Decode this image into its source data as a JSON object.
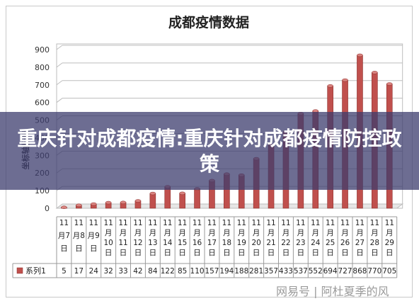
{
  "headline": "重庆针对成都疫情:重庆针对成都疫情防控政策",
  "watermark": "网易号 | 阿杜夏季的风",
  "chart_data": {
    "type": "bar",
    "title": "成都疫情数据",
    "ylabel": "坐标轴标题",
    "xlabel": "",
    "ylim": [
      0,
      900
    ],
    "yticks": [
      0,
      100,
      200,
      300,
      400,
      500,
      600,
      700,
      800,
      900
    ],
    "grid": true,
    "legend_position": "table-left",
    "categories": [
      "11月7日",
      "11月8日",
      "11月9日",
      "11月10日",
      "11月11日",
      "11月12日",
      "11月13日",
      "11月14日",
      "11月15日",
      "11月16日",
      "11月17日",
      "11月18日",
      "11月19日",
      "11月20日",
      "11月21日",
      "11月22日",
      "11月23日",
      "11月24日",
      "11月25日",
      "11月26日",
      "11月27日",
      "11月28日",
      "11月29日"
    ],
    "series": [
      {
        "name": "系列1",
        "color": "#c0504d",
        "values": [
          5,
          17,
          24,
          32,
          33,
          42,
          84,
          122,
          85,
          110,
          157,
          194,
          188,
          281,
          357,
          433,
          537,
          552,
          694,
          727,
          868,
          770,
          705
        ]
      }
    ]
  }
}
